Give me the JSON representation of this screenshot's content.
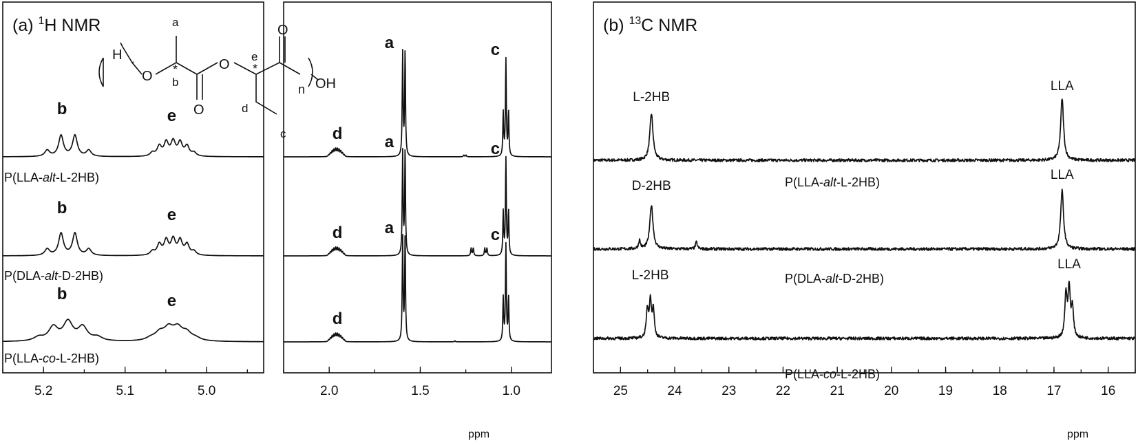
{
  "chart_data": [
    {
      "type": "line",
      "panel": "(a)",
      "title_prefix": "(a) ",
      "title_sup": "1",
      "title_rest": "H NMR",
      "xlabel": "ppm",
      "left_window": {
        "xlim": [
          5.25,
          4.93
        ],
        "ticks": [
          5.2,
          5.1,
          5.0
        ],
        "tick_labels": [
          "5.2",
          "5.1",
          "5.0"
        ]
      },
      "right_window": {
        "xlim": [
          2.25,
          0.78
        ],
        "ticks": [
          2.0,
          1.5,
          1.0
        ],
        "tick_labels": [
          "2.0",
          "1.5",
          "1.0"
        ]
      },
      "structure_labels": {
        "a": "a",
        "b": "b",
        "c": "c",
        "d": "d",
        "e": "e",
        "star": "*",
        "h": "H",
        "o": "O",
        "n": "n",
        "oh": "OH"
      },
      "series": [
        {
          "name": "P(LLA-alt-L-2HB)",
          "name_parts": [
            "P(LLA-",
            "alt",
            "-L-2HB)"
          ],
          "peaks": [
            {
              "label": "b",
              "shift": 5.175
            },
            {
              "label": "e",
              "shift": 5.045
            },
            {
              "label": "d",
              "shift": 1.96
            },
            {
              "label": "a",
              "shift": 1.59
            },
            {
              "label": "c",
              "shift": 1.03
            }
          ]
        },
        {
          "name": "P(DLA-alt-D-2HB)",
          "name_parts": [
            "P(DLA-",
            "alt",
            "-D-2HB)"
          ],
          "peaks": [
            {
              "label": "b",
              "shift": 5.175
            },
            {
              "label": "e",
              "shift": 5.045
            },
            {
              "label": "d",
              "shift": 1.96
            },
            {
              "label": "a",
              "shift": 1.59
            },
            {
              "label": "c",
              "shift": 1.03
            }
          ]
        },
        {
          "name": "P(LLA-co-L-2HB)",
          "name_parts": [
            "P(LLA-",
            "co",
            "-L-2HB)"
          ],
          "peaks": [
            {
              "label": "b",
              "shift": 5.175
            },
            {
              "label": "e",
              "shift": 5.045
            },
            {
              "label": "d",
              "shift": 1.96
            },
            {
              "label": "a",
              "shift": 1.59
            },
            {
              "label": "c",
              "shift": 1.03
            }
          ]
        }
      ]
    },
    {
      "type": "line",
      "panel": "(b)",
      "title_prefix": "(b) ",
      "title_sup": "13",
      "title_rest": "C NMR",
      "xlabel": "ppm",
      "xlim": [
        25.5,
        15.5
      ],
      "ticks": [
        25,
        24,
        23,
        22,
        21,
        20,
        19,
        18,
        17,
        16
      ],
      "tick_labels": [
        "25",
        "24",
        "23",
        "22",
        "21",
        "20",
        "19",
        "18",
        "17",
        "16"
      ],
      "series": [
        {
          "name": "P(LLA-alt-L-2HB)",
          "name_parts": [
            "P(LLA-",
            "alt",
            "-L-2HB)"
          ],
          "peaks": [
            {
              "label": "L-2HB",
              "shift": 24.43
            },
            {
              "label": "LLA",
              "shift": 16.85
            }
          ]
        },
        {
          "name": "P(DLA-alt-D-2HB)",
          "name_parts": [
            "P(DLA-",
            "alt",
            "-D-2HB)"
          ],
          "peaks": [
            {
              "label": "D-2HB",
              "shift": 24.43
            },
            {
              "label": "LLA",
              "shift": 16.85
            }
          ]
        },
        {
          "name": "P(LLA-co-L-2HB)",
          "name_parts": [
            "P(LLA-",
            "co",
            "-L-2HB)"
          ],
          "peaks": [
            {
              "label": "L-2HB",
              "shift": 24.45
            },
            {
              "label": "LLA",
              "shift": 16.72
            }
          ]
        }
      ]
    }
  ]
}
